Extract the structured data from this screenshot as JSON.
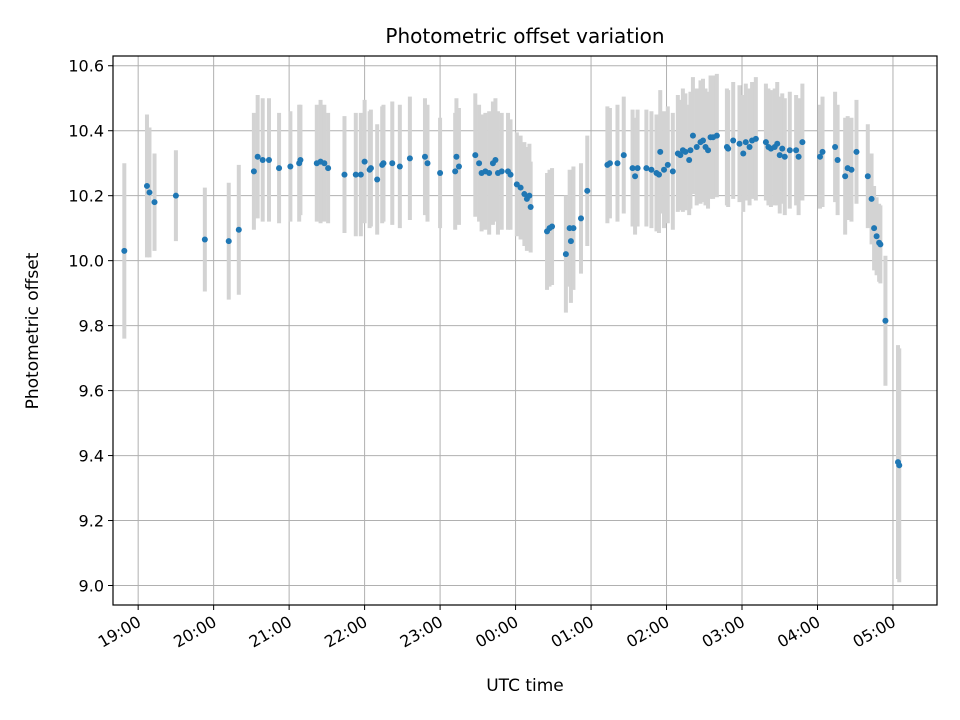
{
  "chart_data": {
    "type": "scatter",
    "title": "Photometric offset variation",
    "xlabel": "UTC time",
    "ylabel": "Photometric offset",
    "x_unit": "hours UTC (times after midnight shown as 24+h)",
    "xlim": [
      "18:40",
      "05:35"
    ],
    "ylim": [
      8.94,
      10.63
    ],
    "x_ticks": [
      "19:00",
      "20:00",
      "21:00",
      "22:00",
      "23:00",
      "00:00",
      "01:00",
      "02:00",
      "03:00",
      "04:00",
      "05:00"
    ],
    "y_ticks": [
      "9.0",
      "9.2",
      "9.4",
      "9.6",
      "9.8",
      "10.0",
      "10.2",
      "10.4",
      "10.6"
    ],
    "grid": true,
    "colors": {
      "points": "#1f77b4",
      "errorbars": "#d3d3d3",
      "grid": "#b0b0b0"
    },
    "series": [
      {
        "points": [
          [
            "18:49",
            10.03,
            0.27
          ],
          [
            "19:07",
            10.23,
            0.22
          ],
          [
            "19:09",
            10.21,
            0.2
          ],
          [
            "19:13",
            10.18,
            0.15
          ],
          [
            "19:30",
            10.2,
            0.14
          ],
          [
            "19:53",
            10.065,
            0.16
          ],
          [
            "20:12",
            10.06,
            0.18
          ],
          [
            "20:20",
            10.095,
            0.2
          ],
          [
            "20:32",
            10.275,
            0.18
          ],
          [
            "20:35",
            10.32,
            0.19
          ],
          [
            "20:39",
            10.31,
            0.19
          ],
          [
            "20:44",
            10.31,
            0.19
          ],
          [
            "20:52",
            10.285,
            0.17
          ],
          [
            "21:01",
            10.29,
            0.17
          ],
          [
            "21:08",
            10.3,
            0.18
          ],
          [
            "21:09",
            10.31,
            0.17
          ],
          [
            "21:22",
            10.3,
            0.18
          ],
          [
            "21:25",
            10.305,
            0.19
          ],
          [
            "21:28",
            10.3,
            0.18
          ],
          [
            "21:31",
            10.285,
            0.17
          ],
          [
            "21:44",
            10.265,
            0.18
          ],
          [
            "21:53",
            10.265,
            0.19
          ],
          [
            "21:57",
            10.265,
            0.19
          ],
          [
            "22:00",
            10.305,
            0.19
          ],
          [
            "22:04",
            10.28,
            0.18
          ],
          [
            "22:05",
            10.285,
            0.18
          ],
          [
            "22:10",
            10.25,
            0.17
          ],
          [
            "22:14",
            10.295,
            0.18
          ],
          [
            "22:15",
            10.3,
            0.18
          ],
          [
            "22:22",
            10.3,
            0.19
          ],
          [
            "22:28",
            10.29,
            0.19
          ],
          [
            "22:36",
            10.315,
            0.19
          ],
          [
            "22:48",
            10.32,
            0.18
          ],
          [
            "22:50",
            10.3,
            0.18
          ],
          [
            "23:00",
            10.27,
            0.17
          ],
          [
            "23:12",
            10.275,
            0.18
          ],
          [
            "23:13",
            10.32,
            0.18
          ],
          [
            "23:15",
            10.29,
            0.18
          ],
          [
            "23:28",
            10.325,
            0.19
          ],
          [
            "23:31",
            10.3,
            0.18
          ],
          [
            "23:33",
            10.27,
            0.18
          ],
          [
            "23:36",
            10.275,
            0.18
          ],
          [
            "23:39",
            10.27,
            0.19
          ],
          [
            "23:42",
            10.3,
            0.19
          ],
          [
            "23:44",
            10.31,
            0.19
          ],
          [
            "23:46",
            10.27,
            0.19
          ],
          [
            "23:49",
            10.275,
            0.18
          ],
          [
            "23:54",
            10.275,
            0.18
          ],
          [
            "23:56",
            10.265,
            0.17
          ],
          [
            "00:01",
            10.235,
            0.16
          ],
          [
            "00:04",
            10.225,
            0.16
          ],
          [
            "00:07",
            10.205,
            0.16
          ],
          [
            "00:09",
            10.19,
            0.16
          ],
          [
            "00:11",
            10.2,
            0.16
          ],
          [
            "00:12",
            10.165,
            0.14
          ],
          [
            "00:25",
            10.09,
            0.18
          ],
          [
            "00:27",
            10.1,
            0.18
          ],
          [
            "00:29",
            10.105,
            0.18
          ],
          [
            "00:40",
            10.02,
            0.18
          ],
          [
            "00:43",
            10.1,
            0.18
          ],
          [
            "00:44",
            10.06,
            0.19
          ],
          [
            "00:46",
            10.1,
            0.19
          ],
          [
            "00:52",
            10.13,
            0.17
          ],
          [
            "00:57",
            10.215,
            0.17
          ],
          [
            "01:13",
            10.295,
            0.18
          ],
          [
            "01:15",
            10.3,
            0.17
          ],
          [
            "01:21",
            10.3,
            0.18
          ],
          [
            "01:26",
            10.325,
            0.18
          ],
          [
            "01:33",
            10.285,
            0.18
          ],
          [
            "01:35",
            10.26,
            0.18
          ],
          [
            "01:37",
            10.285,
            0.18
          ],
          [
            "01:44",
            10.285,
            0.18
          ],
          [
            "01:48",
            10.28,
            0.18
          ],
          [
            "01:52",
            10.27,
            0.18
          ],
          [
            "01:54",
            10.265,
            0.18
          ],
          [
            "01:55",
            10.335,
            0.19
          ],
          [
            "01:58",
            10.28,
            0.18
          ],
          [
            "02:01",
            10.295,
            0.18
          ],
          [
            "02:05",
            10.275,
            0.18
          ],
          [
            "02:09",
            10.33,
            0.18
          ],
          [
            "02:11",
            10.325,
            0.17
          ],
          [
            "02:13",
            10.34,
            0.19
          ],
          [
            "02:15",
            10.335,
            0.18
          ],
          [
            "02:18",
            10.31,
            0.17
          ],
          [
            "02:19",
            10.34,
            0.18
          ],
          [
            "02:21",
            10.385,
            0.18
          ],
          [
            "02:24",
            10.35,
            0.18
          ],
          [
            "02:27",
            10.365,
            0.19
          ],
          [
            "02:29",
            10.37,
            0.19
          ],
          [
            "02:31",
            10.35,
            0.18
          ],
          [
            "02:33",
            10.34,
            0.18
          ],
          [
            "02:35",
            10.38,
            0.19
          ],
          [
            "02:37",
            10.38,
            0.19
          ],
          [
            "02:40",
            10.385,
            0.19
          ],
          [
            "02:48",
            10.35,
            0.18
          ],
          [
            "02:49",
            10.345,
            0.18
          ],
          [
            "02:53",
            10.37,
            0.18
          ],
          [
            "02:58",
            10.36,
            0.18
          ],
          [
            "03:01",
            10.33,
            0.18
          ],
          [
            "03:03",
            10.365,
            0.18
          ],
          [
            "03:06",
            10.35,
            0.18
          ],
          [
            "03:08",
            10.37,
            0.18
          ],
          [
            "03:11",
            10.375,
            0.19
          ],
          [
            "03:19",
            10.365,
            0.18
          ],
          [
            "03:21",
            10.35,
            0.18
          ],
          [
            "03:23",
            10.345,
            0.18
          ],
          [
            "03:26",
            10.35,
            0.18
          ],
          [
            "03:28",
            10.36,
            0.19
          ],
          [
            "03:30",
            10.325,
            0.18
          ],
          [
            "03:32",
            10.345,
            0.17
          ],
          [
            "03:34",
            10.32,
            0.18
          ],
          [
            "03:38",
            10.34,
            0.18
          ],
          [
            "03:43",
            10.34,
            0.17
          ],
          [
            "03:45",
            10.32,
            0.18
          ],
          [
            "03:48",
            10.365,
            0.18
          ],
          [
            "04:02",
            10.32,
            0.16
          ],
          [
            "04:04",
            10.335,
            0.17
          ],
          [
            "04:14",
            10.35,
            0.17
          ],
          [
            "04:16",
            10.31,
            0.17
          ],
          [
            "04:22",
            10.26,
            0.18
          ],
          [
            "04:24",
            10.285,
            0.16
          ],
          [
            "04:27",
            10.28,
            0.16
          ],
          [
            "04:31",
            10.335,
            0.16
          ],
          [
            "04:40",
            10.26,
            0.16
          ],
          [
            "04:43",
            10.19,
            0.14
          ],
          [
            "04:45",
            10.1,
            0.13
          ],
          [
            "04:47",
            10.075,
            0.12
          ],
          [
            "04:49",
            10.055,
            0.12
          ],
          [
            "04:50",
            10.05,
            0.12
          ],
          [
            "04:54",
            9.815,
            0.2
          ],
          [
            "05:04",
            9.38,
            0.36
          ],
          [
            "05:05",
            9.37,
            0.36
          ]
        ]
      }
    ]
  }
}
